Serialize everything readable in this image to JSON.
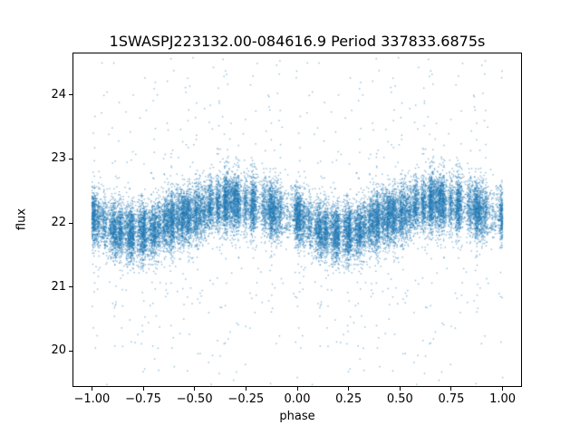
{
  "chart_data": {
    "type": "scatter",
    "title": "1SWASPJ223132.00-084616.9 Period 337833.6875s",
    "xlabel": "phase",
    "ylabel": "flux",
    "xlim": [
      -1.09,
      1.09
    ],
    "ylim": [
      19.45,
      24.65
    ],
    "x_ticks": [
      -1.0,
      -0.75,
      -0.5,
      -0.25,
      0.0,
      0.25,
      0.5,
      0.75,
      1.0
    ],
    "x_tick_labels": [
      "−1.00",
      "−0.75",
      "−0.50",
      "−0.25",
      "0.00",
      "0.25",
      "0.50",
      "0.75",
      "1.00"
    ],
    "y_ticks": [
      20,
      21,
      22,
      23,
      24
    ],
    "y_tick_labels": [
      "20",
      "21",
      "22",
      "23",
      "24"
    ],
    "grid": false,
    "legend": null,
    "marker_color": "#1f77b4",
    "marker_alpha": 0.5,
    "marker_size_px": 1.4,
    "plot_duplicated_at_offset": -1.0,
    "phase_profile": [
      {
        "phase": 0.0,
        "flux": 22.1
      },
      {
        "phase": 0.05,
        "flux": 22.0
      },
      {
        "phase": 0.1,
        "flux": 21.92
      },
      {
        "phase": 0.15,
        "flux": 21.87
      },
      {
        "phase": 0.2,
        "flux": 21.84
      },
      {
        "phase": 0.25,
        "flux": 21.85
      },
      {
        "phase": 0.3,
        "flux": 21.9
      },
      {
        "phase": 0.35,
        "flux": 21.98
      },
      {
        "phase": 0.4,
        "flux": 22.06
      },
      {
        "phase": 0.45,
        "flux": 22.1
      },
      {
        "phase": 0.5,
        "flux": 22.14
      },
      {
        "phase": 0.55,
        "flux": 22.2
      },
      {
        "phase": 0.6,
        "flux": 22.28
      },
      {
        "phase": 0.65,
        "flux": 22.31
      },
      {
        "phase": 0.7,
        "flux": 22.32
      },
      {
        "phase": 0.75,
        "flux": 22.3
      },
      {
        "phase": 0.8,
        "flux": 22.27
      },
      {
        "phase": 0.85,
        "flux": 22.22
      },
      {
        "phase": 0.9,
        "flux": 22.18
      },
      {
        "phase": 0.95,
        "flux": 22.14
      },
      {
        "phase": 1.0,
        "flux": 22.1
      }
    ],
    "noise_sigma": 0.22,
    "outlier_fraction": 0.045,
    "n_points": 12000,
    "n_phase_clusters": 60,
    "cluster_width": 0.007,
    "cluster_fraction": 0.78,
    "seed": 20230917
  }
}
